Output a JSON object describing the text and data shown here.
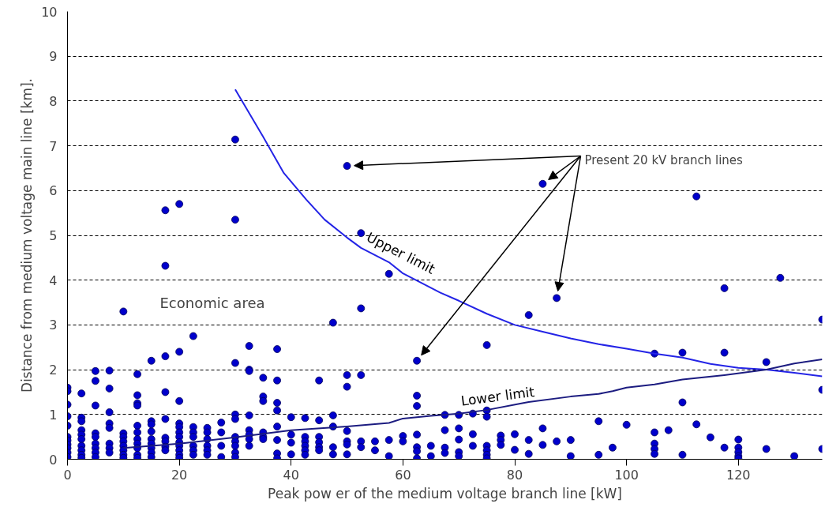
{
  "chart_data": {
    "type": "scatter",
    "xlabel": "Peak pow er of the medium voltage branch line [kW]",
    "ylabel": "Distance from medium voltage main line [km].",
    "xlim": [
      0,
      135
    ],
    "xticks": [
      0,
      20,
      40,
      60,
      80,
      100,
      120
    ],
    "ylim": [
      0,
      10
    ],
    "yticks": [
      0,
      1,
      2,
      3,
      4,
      5,
      6,
      7,
      8,
      9,
      10
    ],
    "grid": "y",
    "annotations": [
      "Present 20 kV branch lines",
      "Economic area"
    ],
    "series": [
      {
        "marker": "circle",
        "color": "#0000cc",
        "x": [
          50,
          85,
          87.5,
          62.5,
          0,
          0,
          0,
          0,
          0,
          0,
          0,
          0,
          0,
          0,
          0,
          2.5,
          2.5,
          2.5,
          2.5,
          2.5,
          2.5,
          2.5,
          2.5,
          2.5,
          2.5,
          5,
          5,
          5,
          5,
          5,
          5,
          5,
          5,
          5,
          7.5,
          7.5,
          7.5,
          7.5,
          7.5,
          7.5,
          7.5,
          7.5,
          10,
          10,
          10,
          10,
          10,
          10,
          10,
          10,
          12.5,
          12.5,
          12.5,
          12.5,
          12.5,
          12.5,
          12.5,
          12.5,
          12.5,
          12.5,
          12.5,
          15,
          15,
          15,
          15,
          15,
          15,
          15,
          15,
          15,
          17.5,
          17.5,
          17.5,
          17.5,
          17.5,
          17.5,
          17.5,
          17.5,
          17.5,
          20,
          20,
          20,
          20,
          20,
          20,
          20,
          20,
          20,
          20,
          20,
          20,
          22.5,
          22.5,
          22.5,
          22.5,
          22.5,
          22.5,
          22.5,
          25,
          25,
          25,
          25,
          25,
          25,
          27.5,
          27.5,
          27.5,
          27.5,
          30,
          30,
          30,
          30,
          30,
          30,
          30,
          30,
          30,
          30,
          32.5,
          32.5,
          32.5,
          32.5,
          32.5,
          32.5,
          32.5,
          32.5,
          35,
          35,
          35,
          35,
          35,
          35,
          37.5,
          37.5,
          37.5,
          37.5,
          37.5,
          37.5,
          37.5,
          37.5,
          40,
          40,
          40,
          40,
          42.5,
          42.5,
          42.5,
          42.5,
          42.5,
          42.5,
          45,
          45,
          45,
          45,
          45,
          45,
          47.5,
          47.5,
          47.5,
          47.5,
          47.5,
          50,
          50,
          50,
          50,
          50,
          50,
          52.5,
          52.5,
          52.5,
          52.5,
          52.5,
          55,
          55,
          57.5,
          57.5,
          57.5,
          60,
          60,
          62.5,
          62.5,
          62.5,
          62.5,
          62.5,
          62.5,
          65,
          65,
          67.5,
          67.5,
          67.5,
          67.5,
          70,
          70,
          70,
          70,
          70,
          72.5,
          72.5,
          72.5,
          75,
          75,
          75,
          75,
          75,
          75,
          75,
          77.5,
          77.5,
          77.5,
          80,
          80,
          82.5,
          82.5,
          82.5,
          85,
          85,
          87.5,
          90,
          90,
          95,
          95,
          97.5,
          100,
          105,
          105,
          105,
          105,
          105,
          107.5,
          110,
          110,
          110,
          112.5,
          112.5,
          115,
          117.5,
          117.5,
          117.5,
          120,
          120,
          120,
          120,
          120,
          125,
          125,
          127.5,
          130,
          135,
          135,
          135
        ],
        "values": [
          6.55,
          6.15,
          3.6,
          2.2,
          1.6,
          1.52,
          1.22,
          0.96,
          0.75,
          0.5,
          0.42,
          0.33,
          0.25,
          0.15,
          0.05,
          1.47,
          0.93,
          0.85,
          0.65,
          0.55,
          0.45,
          0.3,
          0.2,
          0.1,
          0.03,
          1.97,
          1.75,
          1.2,
          0.58,
          0.5,
          0.35,
          0.25,
          0.15,
          0.05,
          1.98,
          1.58,
          1.05,
          0.8,
          0.7,
          0.35,
          0.25,
          0.15,
          3.3,
          0.58,
          0.5,
          0.4,
          0.3,
          0.2,
          0.1,
          0.03,
          1.9,
          1.43,
          1.25,
          1.2,
          0.75,
          0.6,
          0.45,
          0.35,
          0.25,
          0.1,
          0.03,
          2.2,
          0.85,
          0.78,
          0.62,
          0.45,
          0.35,
          0.25,
          0.15,
          0.05,
          5.56,
          4.32,
          2.3,
          1.5,
          0.9,
          0.48,
          0.4,
          0.28,
          0.2,
          5.7,
          2.4,
          1.3,
          0.8,
          0.72,
          0.6,
          0.5,
          0.38,
          0.3,
          0.2,
          0.1,
          0.03,
          2.75,
          0.72,
          0.6,
          0.5,
          0.3,
          0.2,
          0.1,
          0.7,
          0.6,
          0.45,
          0.3,
          0.2,
          0.1,
          0.82,
          0.6,
          0.3,
          0.05,
          7.14,
          5.35,
          2.15,
          1.0,
          0.9,
          0.5,
          0.4,
          0.3,
          0.15,
          0.05,
          2.53,
          2.0,
          1.97,
          0.98,
          0.65,
          0.55,
          0.45,
          0.3,
          1.82,
          1.4,
          1.3,
          0.6,
          0.5,
          0.45,
          2.46,
          1.76,
          1.26,
          1.09,
          0.73,
          0.43,
          0.13,
          0.02,
          0.94,
          0.55,
          0.37,
          0.11,
          0.92,
          0.5,
          0.4,
          0.3,
          0.2,
          0.1,
          1.76,
          0.87,
          0.5,
          0.38,
          0.27,
          0.2,
          3.05,
          0.98,
          0.73,
          0.27,
          0.11,
          1.88,
          1.62,
          0.63,
          0.4,
          0.33,
          0.11,
          5.05,
          3.37,
          1.88,
          0.4,
          0.27,
          0.4,
          0.2,
          4.14,
          0.43,
          0.07,
          0.52,
          0.4,
          1.42,
          1.19,
          0.55,
          0.27,
          0.18,
          0.02,
          0.3,
          0.07,
          0.99,
          0.65,
          0.26,
          0.14,
          0.99,
          0.69,
          0.44,
          0.16,
          0.07,
          1.02,
          0.56,
          0.3,
          2.55,
          1.09,
          0.95,
          0.3,
          0.2,
          0.1,
          0.02,
          0.53,
          0.43,
          0.32,
          0.56,
          0.21,
          3.22,
          0.43,
          0.12,
          0.69,
          0.32,
          0.4,
          0.43,
          0.07,
          0.85,
          0.1,
          0.26,
          0.77,
          2.36,
          0.6,
          0.35,
          0.23,
          0.12,
          0.65,
          2.38,
          1.27,
          0.1,
          5.87,
          0.78,
          0.49,
          3.82,
          2.38,
          0.26,
          0.44,
          0.26,
          0.16,
          0.07,
          0.02,
          2.17,
          0.23,
          4.05,
          0.07,
          3.12,
          1.55,
          0.23
        ]
      },
      {
        "type": "line",
        "name": "Upper limit",
        "color": "#2424e6",
        "x": [
          30,
          35,
          38.7,
          42.7,
          46,
          50,
          52.5,
          57.5,
          60,
          66.7,
          70,
          75,
          80,
          85,
          90,
          95,
          100,
          105,
          110,
          115,
          120,
          125,
          130,
          135
        ],
        "values": [
          8.26,
          7.2,
          6.39,
          5.8,
          5.35,
          4.95,
          4.72,
          4.4,
          4.15,
          3.72,
          3.54,
          3.25,
          3.0,
          2.85,
          2.7,
          2.57,
          2.47,
          2.36,
          2.27,
          2.13,
          2.04,
          2.0,
          1.93,
          1.85
        ]
      },
      {
        "type": "line",
        "name": "Lower limit",
        "color": "#1c1c80",
        "x": [
          10,
          20,
          30,
          40,
          50,
          57.5,
          60,
          65,
          70,
          75,
          82.5,
          90,
          95,
          97.5,
          100,
          105,
          110,
          117.5,
          125,
          130,
          135
        ],
        "values": [
          0.25,
          0.35,
          0.49,
          0.65,
          0.73,
          0.81,
          0.91,
          0.97,
          1.02,
          1.1,
          1.28,
          1.4,
          1.46,
          1.52,
          1.6,
          1.67,
          1.78,
          1.88,
          2.0,
          2.14,
          2.23
        ]
      }
    ]
  }
}
